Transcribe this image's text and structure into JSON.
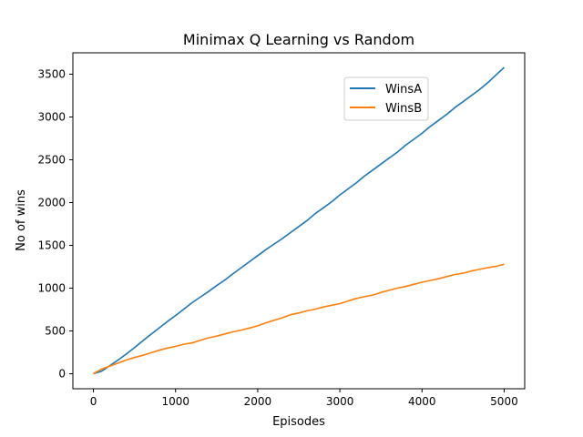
{
  "chart_data": {
    "type": "line",
    "title": "Minimax Q Learning vs Random",
    "xlabel": "Episodes",
    "ylabel": "No of wins",
    "xlim": [
      -250,
      5250
    ],
    "ylim": [
      -175,
      3750
    ],
    "xticks": [
      0,
      1000,
      2000,
      3000,
      4000,
      5000
    ],
    "yticks": [
      0,
      500,
      1000,
      1500,
      2000,
      2500,
      3000,
      3500
    ],
    "grid": false,
    "legend_position": "upper-right",
    "series": [
      {
        "name": "WinsA",
        "color": "#1f77b4",
        "x": [
          0,
          100,
          200,
          300,
          400,
          500,
          600,
          700,
          800,
          900,
          1000,
          1100,
          1200,
          1300,
          1400,
          1500,
          1600,
          1700,
          1800,
          1900,
          2000,
          2100,
          2200,
          2300,
          2400,
          2500,
          2600,
          2700,
          2800,
          2900,
          3000,
          3100,
          3200,
          3300,
          3400,
          3500,
          3600,
          3700,
          3800,
          3900,
          4000,
          4100,
          4200,
          4300,
          4400,
          4500,
          4600,
          4700,
          4800,
          4900,
          5000
        ],
        "y": [
          0,
          30,
          95,
          160,
          230,
          305,
          385,
          460,
          535,
          610,
          680,
          755,
          830,
          895,
          960,
          1030,
          1095,
          1170,
          1240,
          1310,
          1380,
          1450,
          1515,
          1580,
          1650,
          1720,
          1790,
          1870,
          1940,
          2010,
          2090,
          2160,
          2230,
          2310,
          2380,
          2450,
          2520,
          2590,
          2670,
          2740,
          2810,
          2890,
          2960,
          3030,
          3110,
          3180,
          3250,
          3320,
          3400,
          3490,
          3580
        ]
      },
      {
        "name": "WinsB",
        "color": "#ff7f0e",
        "x": [
          0,
          100,
          200,
          300,
          400,
          500,
          600,
          700,
          800,
          900,
          1000,
          1100,
          1200,
          1300,
          1400,
          1500,
          1600,
          1700,
          1800,
          1900,
          2000,
          2100,
          2200,
          2300,
          2400,
          2500,
          2600,
          2700,
          2800,
          2900,
          3000,
          3100,
          3200,
          3300,
          3400,
          3500,
          3600,
          3700,
          3800,
          3900,
          4000,
          4100,
          4200,
          4300,
          4400,
          4500,
          4600,
          4700,
          4800,
          4900,
          5000
        ],
        "y": [
          0,
          55,
          90,
          125,
          160,
          190,
          215,
          245,
          275,
          300,
          320,
          345,
          360,
          390,
          420,
          440,
          465,
          490,
          510,
          535,
          560,
          595,
          625,
          655,
          690,
          710,
          735,
          755,
          780,
          800,
          820,
          850,
          880,
          900,
          920,
          950,
          975,
          1000,
          1020,
          1045,
          1070,
          1090,
          1110,
          1135,
          1160,
          1175,
          1200,
          1220,
          1240,
          1255,
          1280
        ]
      }
    ]
  }
}
